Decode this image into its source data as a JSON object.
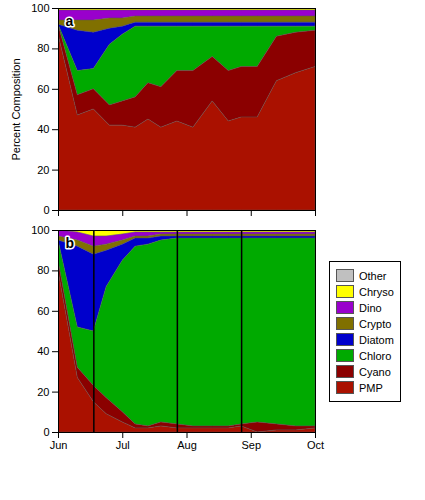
{
  "chart_data": [
    {
      "type": "area",
      "title": "a",
      "ylabel": "Percent Composition",
      "stacked": true,
      "x": [
        0.0,
        0.3,
        0.55,
        0.8,
        1.0,
        1.2,
        1.4,
        1.6,
        1.85,
        2.1,
        2.4,
        2.65,
        2.85,
        3.1,
        3.4,
        3.7,
        4.0
      ],
      "xlim": [
        0,
        4
      ],
      "xticks": [
        0,
        1,
        2,
        3,
        4
      ],
      "ylim": [
        0,
        100
      ],
      "yticks": [
        0,
        20,
        40,
        60,
        80,
        100
      ],
      "tick_labels": "y",
      "series": [
        {
          "name": "Other",
          "color": "#c0c0c0",
          "values": [
            0,
            0,
            0,
            0,
            0,
            0,
            0,
            0,
            0,
            0,
            0,
            0,
            0,
            0,
            0,
            0,
            0
          ]
        },
        {
          "name": "Chryso",
          "color": "#ffff00",
          "values": [
            1,
            1,
            1,
            1,
            1,
            1,
            1,
            1,
            1,
            1,
            1,
            1,
            1,
            1,
            1,
            1,
            1
          ]
        },
        {
          "name": "Dino",
          "color": "#9900cc",
          "values": [
            5,
            5,
            5,
            4,
            4,
            3,
            3,
            3,
            3,
            3,
            3,
            3,
            3,
            3,
            3,
            3,
            3
          ]
        },
        {
          "name": "Crypto",
          "color": "#807000",
          "values": [
            2,
            5,
            6,
            5,
            4,
            3,
            3,
            3,
            3,
            3,
            3,
            3,
            3,
            3,
            3,
            3,
            3
          ]
        },
        {
          "name": "Diatom",
          "color": "#0000cc",
          "values": [
            0,
            20,
            18,
            8,
            4,
            2,
            2,
            2,
            2,
            2,
            2,
            2,
            2,
            2,
            2,
            2,
            2
          ]
        },
        {
          "name": "Chloro",
          "color": "#00aa00",
          "values": [
            0,
            12,
            10,
            30,
            33,
            35,
            28,
            30,
            22,
            22,
            15,
            22,
            20,
            20,
            5,
            3,
            2
          ]
        },
        {
          "name": "Cyano",
          "color": "#8b0000",
          "values": [
            5,
            10,
            10,
            10,
            12,
            15,
            18,
            20,
            25,
            28,
            22,
            25,
            25,
            25,
            22,
            20,
            18
          ]
        },
        {
          "name": "PMP",
          "color": "#aa1100",
          "values": [
            87,
            47,
            50,
            42,
            42,
            41,
            45,
            41,
            44,
            41,
            54,
            44,
            46,
            46,
            64,
            68,
            71
          ]
        }
      ]
    },
    {
      "type": "area",
      "title": "b",
      "stacked": true,
      "x": [
        0.0,
        0.3,
        0.55,
        0.75,
        1.0,
        1.2,
        1.4,
        1.6,
        1.85,
        2.1,
        2.4,
        2.65,
        2.85,
        3.1,
        3.4,
        3.7,
        4.0
      ],
      "xlim": [
        0,
        4
      ],
      "xticks": [
        {
          "value": 0,
          "label": "Jun"
        },
        {
          "value": 1,
          "label": "Jul"
        },
        {
          "value": 2,
          "label": "Aug"
        },
        {
          "value": 3,
          "label": "Sep"
        },
        {
          "value": 4,
          "label": "Oct"
        }
      ],
      "ylim": [
        0,
        100
      ],
      "yticks": [
        0,
        20,
        40,
        60,
        80,
        100
      ],
      "legend": "right",
      "vlines": [
        {
          "x": 0.55,
          "line_style": "solid"
        },
        {
          "x": 1.85,
          "line_style": "solid"
        },
        {
          "x": 2.85,
          "line_style": "dashed"
        }
      ],
      "series": [
        {
          "name": "Other",
          "color": "#c0c0c0",
          "values": [
            0,
            0,
            0,
            0,
            0,
            0,
            0,
            0,
            0,
            0,
            0,
            0,
            0,
            0,
            0,
            0,
            0
          ]
        },
        {
          "name": "Chryso",
          "color": "#ffff00",
          "values": [
            0,
            1,
            3,
            3,
            2,
            1,
            1,
            1,
            1,
            1,
            1,
            1,
            1,
            0.990099,
            1,
            1,
            1
          ]
        },
        {
          "name": "Dino",
          "color": "#9900cc",
          "values": [
            3,
            4,
            5,
            4,
            3,
            2,
            2,
            1,
            1,
            1,
            1,
            1,
            1,
            0.990099,
            1,
            1,
            1
          ]
        },
        {
          "name": "Crypto",
          "color": "#807000",
          "values": [
            2,
            3,
            4,
            3,
            2,
            1,
            1,
            1,
            1,
            1,
            1,
            1,
            1,
            0.990099,
            1,
            1,
            1
          ]
        },
        {
          "name": "Diatom",
          "color": "#0000cc",
          "values": [
            0,
            40,
            38,
            18,
            8,
            4,
            3,
            2,
            1,
            1,
            1,
            1,
            1,
            0.990099,
            1,
            1,
            1
          ]
        },
        {
          "name": "Chloro",
          "color": "#00aa00",
          "values": [
            10,
            20,
            27,
            55,
            75,
            88,
            90,
            90,
            92,
            93,
            93,
            93,
            92,
            91.089109,
            92,
            93,
            93
          ]
        },
        {
          "name": "Cyano",
          "color": "#8b0000",
          "values": [
            5,
            5,
            8,
            8,
            5,
            2,
            1,
            2,
            2,
            1,
            1,
            1,
            1,
            4.950495,
            3,
            2,
            1
          ]
        },
        {
          "name": "PMP",
          "color": "#aa1100",
          "values": [
            80,
            27,
            15,
            9,
            5,
            2,
            2,
            3,
            2,
            2,
            2,
            2,
            3,
            0,
            1,
            1,
            2
          ]
        }
      ]
    }
  ]
}
